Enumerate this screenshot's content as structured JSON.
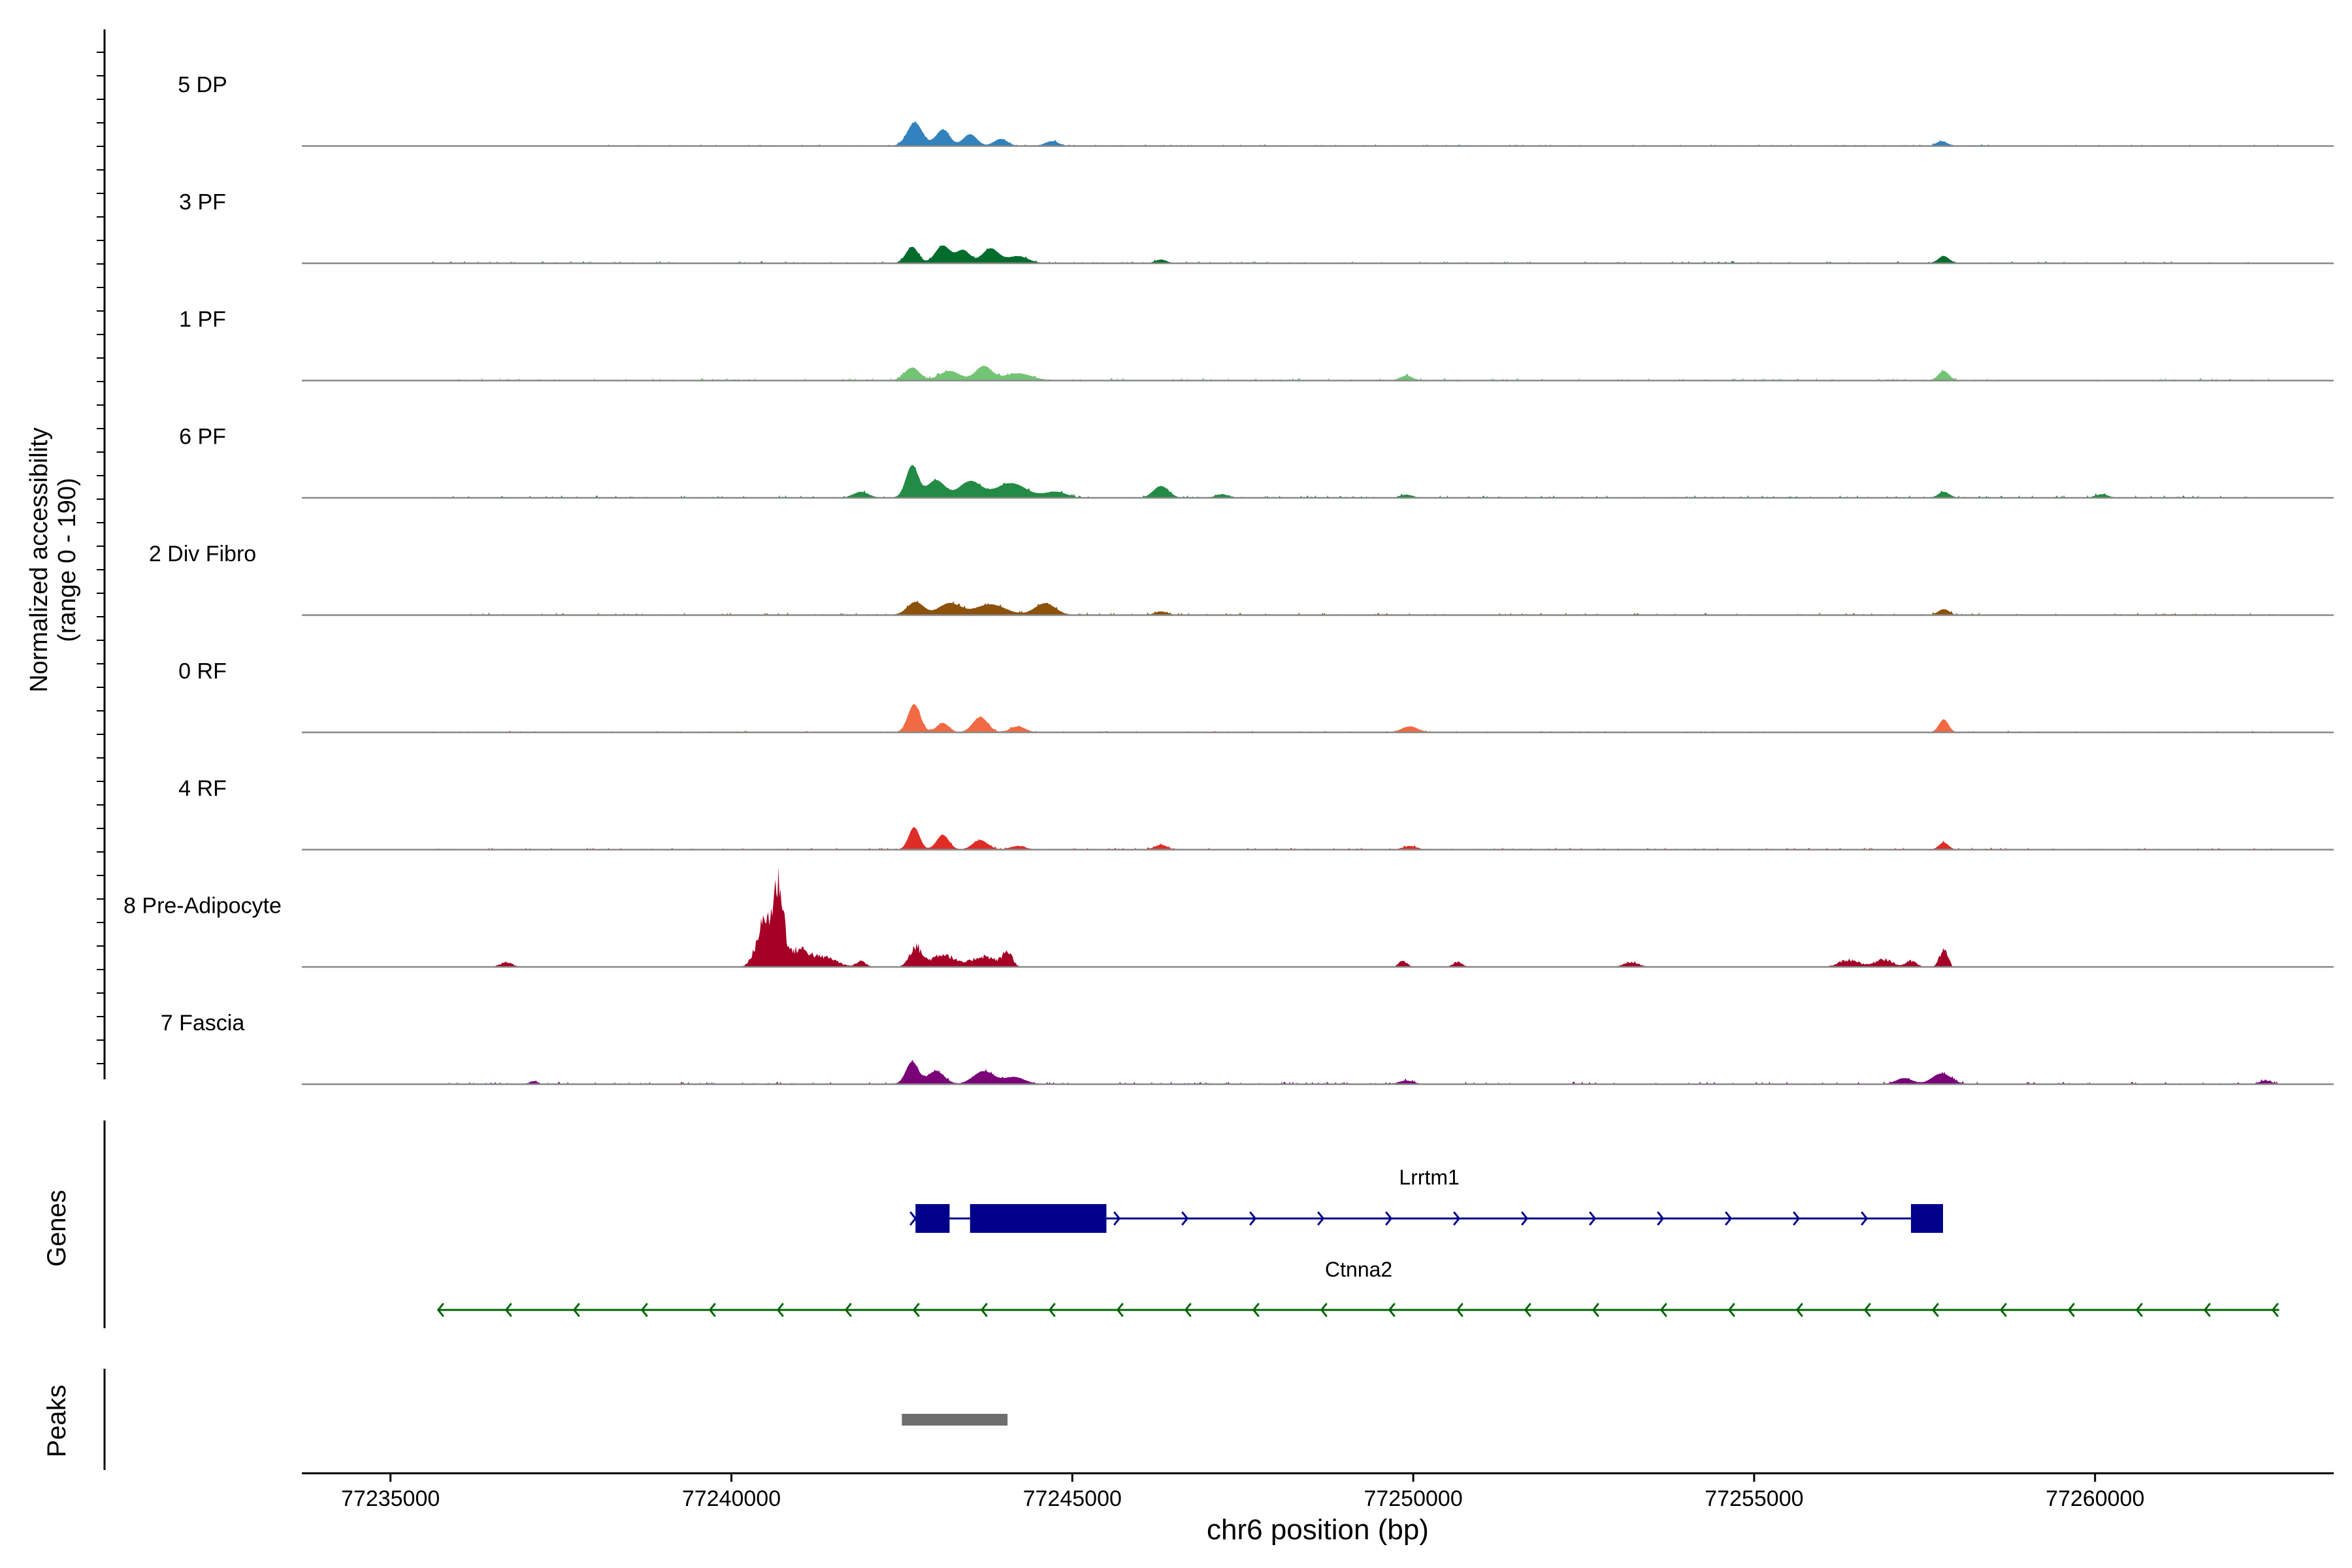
{
  "chart_data": {
    "type": "area",
    "title": "",
    "chromosome": "chr6",
    "xlabel": "chr6 position (bp)",
    "xlim": [
      77233700,
      77263500
    ],
    "x_ticks": [
      77235000,
      77240000,
      77245000,
      77250000,
      77255000,
      77260000
    ],
    "x_tick_labels": [
      "77235000",
      "77240000",
      "77245000",
      "77250000",
      "77255000",
      "77260000"
    ],
    "ylabel_line1": "Normalized accessibility",
    "ylabel_line2": "(range 0 - 190)",
    "ylim": [
      0,
      190
    ],
    "genes_label": "Genes",
    "peaks_label": "Peaks",
    "colors": {
      "baseline": "#888888",
      "gene_lrrtm1": "#00008b",
      "gene_ctnna2": "#006400",
      "peak": "#6e6e6e",
      "axis": "#000000"
    },
    "series": [
      {
        "name": "5 DP",
        "color": "#3182bd",
        "noise": 2.0,
        "range": [
          77238000,
          77262700
        ],
        "peaks": [
          [
            77242690,
            40,
            110
          ],
          [
            77243100,
            28,
            100
          ],
          [
            77243500,
            20,
            100
          ],
          [
            77243950,
            12,
            100
          ],
          [
            77244700,
            8,
            100
          ],
          [
            77257750,
            8,
            80
          ]
        ]
      },
      {
        "name": "3 PF",
        "color": "#006d2c",
        "noise": 2.5,
        "range": [
          77235600,
          77262700
        ],
        "peaks": [
          [
            77242650,
            28,
            90
          ],
          [
            77243100,
            30,
            110
          ],
          [
            77243400,
            22,
            100
          ],
          [
            77243800,
            25,
            120
          ],
          [
            77244200,
            12,
            150
          ],
          [
            77246300,
            6,
            80
          ],
          [
            77257780,
            12,
            80
          ]
        ]
      },
      {
        "name": "1 PF",
        "color": "#74c476",
        "noise": 3.0,
        "range": [
          77235600,
          77262700
        ],
        "peaks": [
          [
            77242650,
            22,
            110
          ],
          [
            77243200,
            16,
            150
          ],
          [
            77243700,
            24,
            120
          ],
          [
            77244200,
            12,
            200
          ],
          [
            77249900,
            8,
            90
          ],
          [
            77257780,
            16,
            80
          ]
        ]
      },
      {
        "name": "6 PF",
        "color": "#238b45",
        "noise": 3.0,
        "range": [
          77235600,
          77262700
        ],
        "peaks": [
          [
            77241900,
            10,
            110
          ],
          [
            77242650,
            55,
            90
          ],
          [
            77243000,
            30,
            130
          ],
          [
            77243500,
            28,
            160
          ],
          [
            77244100,
            25,
            220
          ],
          [
            77244750,
            10,
            160
          ],
          [
            77246300,
            20,
            110
          ],
          [
            77247200,
            6,
            90
          ],
          [
            77249900,
            5,
            90
          ],
          [
            77257780,
            10,
            80
          ],
          [
            77260100,
            6,
            90
          ]
        ]
      },
      {
        "name": "2 Div Fibro",
        "color": "#8c510a",
        "noise": 3.0,
        "range": [
          77235600,
          77262700
        ],
        "peaks": [
          [
            77242700,
            22,
            120
          ],
          [
            77243200,
            20,
            160
          ],
          [
            77243800,
            18,
            220
          ],
          [
            77244600,
            20,
            150
          ],
          [
            77246300,
            6,
            90
          ],
          [
            77257780,
            10,
            80
          ]
        ]
      },
      {
        "name": "0 RF",
        "color": "#f16a43",
        "noise": 2.0,
        "range": [
          77235600,
          77262700
        ],
        "peaks": [
          [
            77242680,
            48,
            90
          ],
          [
            77243100,
            16,
            90
          ],
          [
            77243650,
            26,
            110
          ],
          [
            77244200,
            10,
            110
          ],
          [
            77249950,
            10,
            120
          ],
          [
            77257780,
            22,
            70
          ]
        ]
      },
      {
        "name": "4 RF",
        "color": "#de2d26",
        "noise": 2.5,
        "range": [
          77235600,
          77262700
        ],
        "peaks": [
          [
            77242680,
            38,
            80
          ],
          [
            77243100,
            25,
            90
          ],
          [
            77243650,
            16,
            110
          ],
          [
            77244200,
            6,
            110
          ],
          [
            77246300,
            8,
            90
          ],
          [
            77249950,
            6,
            100
          ],
          [
            77257780,
            12,
            70
          ]
        ]
      },
      {
        "name": "8 Pre-Adipocyte",
        "color": "#a50026",
        "noise": 0.0,
        "range": [
          77236500,
          77257900
        ],
        "peaks": [
          [
            77236700,
            8,
            90
          ],
          [
            77240500,
            80,
            120
          ],
          [
            77240700,
            120,
            70
          ],
          [
            77241000,
            30,
            160
          ],
          [
            77241400,
            15,
            160
          ],
          [
            77241900,
            10,
            70
          ],
          [
            77242700,
            35,
            90
          ],
          [
            77243100,
            22,
            160
          ],
          [
            77243700,
            18,
            180
          ],
          [
            77244050,
            25,
            70
          ],
          [
            77249850,
            10,
            60
          ],
          [
            77250650,
            8,
            70
          ],
          [
            77253200,
            8,
            110
          ],
          [
            77256400,
            12,
            150
          ],
          [
            77256900,
            14,
            120
          ],
          [
            77257300,
            10,
            80
          ],
          [
            77257780,
            30,
            60
          ]
        ]
      },
      {
        "name": "7 Fascia",
        "color": "#7a0177",
        "noise": 3.0,
        "range": [
          77235600,
          77262700
        ],
        "peaks": [
          [
            77237100,
            5,
            60
          ],
          [
            77242650,
            38,
            90
          ],
          [
            77243000,
            22,
            120
          ],
          [
            77243700,
            22,
            150
          ],
          [
            77244150,
            12,
            150
          ],
          [
            77249900,
            6,
            100
          ],
          [
            77257750,
            18,
            140
          ],
          [
            77257200,
            10,
            120
          ],
          [
            77262500,
            6,
            80
          ]
        ]
      }
    ],
    "genes": [
      {
        "name": "Lrrtm1",
        "strand": "+",
        "start": 77242700,
        "end": 77257770,
        "color": "#00008b",
        "exons": [
          [
            77242700,
            77243200
          ],
          [
            77243500,
            77245500
          ],
          [
            77257300,
            77257770
          ]
        ]
      },
      {
        "name": "Ctnna2",
        "strand": "-",
        "start": 77235700,
        "end": 77262700,
        "color": "#006400",
        "exons": []
      }
    ],
    "peaks_regions": [
      [
        77242500,
        77244050
      ]
    ]
  }
}
